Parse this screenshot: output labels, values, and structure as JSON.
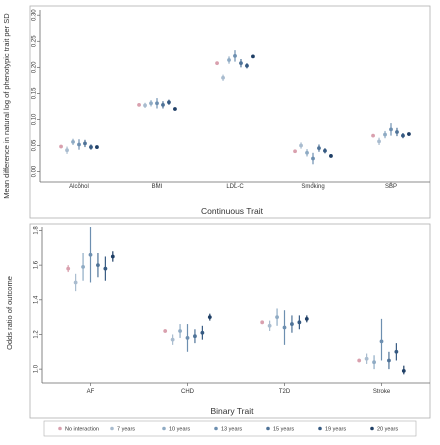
{
  "colors": {
    "series": [
      "#d9a0ae",
      "#a9bccf",
      "#8fabc4",
      "#6d8fb0",
      "#4f7398",
      "#365a82",
      "#1f3f66"
    ],
    "axis": "#666666",
    "frame": "#b0b0b0",
    "text": "#333333"
  },
  "legend": {
    "placement": "bottom",
    "items": [
      "No interaction",
      "7 years",
      "10 years",
      "13 years",
      "15 years",
      "19 years",
      "20 years"
    ]
  },
  "chart_data": [
    {
      "type": "scatter",
      "error_bars": true,
      "xlabel": "Continuous Trait",
      "ylabel": "Mean difference in natural log of phenotypic trait per SD",
      "categories": [
        "Alcohol",
        "BMI",
        "LDL-C",
        "Smoking",
        "SBP"
      ],
      "ylim": [
        -0.02,
        0.31
      ],
      "yticks": [
        0.0,
        0.05,
        0.1,
        0.15,
        0.2,
        0.25,
        0.3
      ],
      "ytick_labels": [
        "0.00",
        "0.05",
        "0.10",
        "0.15",
        "0.20",
        "0.25",
        "0.30"
      ],
      "grid": false,
      "series": [
        {
          "name": "No interaction",
          "values": [
            0.048,
            0.128,
            0.208,
            0.039,
            0.069
          ],
          "lower": [
            0.046,
            0.126,
            0.206,
            0.037,
            0.067
          ],
          "upper": [
            0.05,
            0.13,
            0.21,
            0.041,
            0.071
          ]
        },
        {
          "name": "7 years",
          "values": [
            0.041,
            0.127,
            0.18,
            0.05,
            0.058
          ],
          "lower": [
            0.034,
            0.122,
            0.174,
            0.044,
            0.051
          ],
          "upper": [
            0.048,
            0.132,
            0.186,
            0.056,
            0.065
          ]
        },
        {
          "name": "10 years",
          "values": [
            0.057,
            0.131,
            0.214,
            0.036,
            0.071
          ],
          "lower": [
            0.051,
            0.125,
            0.207,
            0.029,
            0.064
          ],
          "upper": [
            0.063,
            0.137,
            0.221,
            0.043,
            0.078
          ]
        },
        {
          "name": "13 years",
          "values": [
            0.052,
            0.131,
            0.222,
            0.025,
            0.081
          ],
          "lower": [
            0.042,
            0.121,
            0.211,
            0.014,
            0.069
          ],
          "upper": [
            0.062,
            0.141,
            0.233,
            0.036,
            0.093
          ]
        },
        {
          "name": "15 years",
          "values": [
            0.054,
            0.128,
            0.208,
            0.045,
            0.076
          ],
          "lower": [
            0.047,
            0.121,
            0.2,
            0.038,
            0.068
          ],
          "upper": [
            0.061,
            0.135,
            0.216,
            0.052,
            0.084
          ]
        },
        {
          "name": "19 years",
          "values": [
            0.047,
            0.133,
            0.203,
            0.04,
            0.069
          ],
          "lower": [
            0.042,
            0.128,
            0.198,
            0.035,
            0.064
          ],
          "upper": [
            0.052,
            0.138,
            0.208,
            0.045,
            0.074
          ]
        },
        {
          "name": "20 years",
          "values": [
            0.047,
            0.12,
            0.221,
            0.03,
            0.072
          ],
          "lower": [
            0.044,
            0.117,
            0.218,
            0.027,
            0.069
          ],
          "upper": [
            0.05,
            0.123,
            0.224,
            0.033,
            0.075
          ]
        }
      ]
    },
    {
      "type": "scatter",
      "error_bars": true,
      "xlabel": "Binary Trait",
      "ylabel": "Odds ratio of outcome",
      "categories": [
        "AF",
        "CHD",
        "T2D",
        "Stroke"
      ],
      "ylim": [
        0.92,
        1.82
      ],
      "yticks": [
        1.0,
        1.2,
        1.4,
        1.6,
        1.8
      ],
      "ytick_labels": [
        "1.0",
        "1.2",
        "1.4",
        "1.6",
        "1.8"
      ],
      "grid": false,
      "series": [
        {
          "name": "No interaction",
          "values": [
            1.58,
            1.22,
            1.27,
            1.05
          ],
          "lower": [
            1.56,
            1.21,
            1.26,
            1.04
          ],
          "upper": [
            1.6,
            1.23,
            1.28,
            1.06
          ]
        },
        {
          "name": "7 years",
          "values": [
            1.5,
            1.17,
            1.25,
            1.06
          ],
          "lower": [
            1.45,
            1.14,
            1.22,
            1.03
          ],
          "upper": [
            1.55,
            1.2,
            1.28,
            1.09
          ]
        },
        {
          "name": "10 years",
          "values": [
            1.59,
            1.22,
            1.3,
            1.04
          ],
          "lower": [
            1.51,
            1.18,
            1.25,
            1.0
          ],
          "upper": [
            1.67,
            1.26,
            1.35,
            1.08
          ]
        },
        {
          "name": "13 years",
          "values": [
            1.66,
            1.18,
            1.24,
            1.16
          ],
          "lower": [
            1.5,
            1.1,
            1.14,
            1.05
          ],
          "upper": [
            1.82,
            1.26,
            1.34,
            1.29
          ]
        },
        {
          "name": "15 years",
          "values": [
            1.6,
            1.19,
            1.26,
            1.05
          ],
          "lower": [
            1.53,
            1.15,
            1.21,
            1.0
          ],
          "upper": [
            1.67,
            1.23,
            1.31,
            1.1
          ]
        },
        {
          "name": "19 years",
          "values": [
            1.58,
            1.21,
            1.27,
            1.1
          ],
          "lower": [
            1.51,
            1.17,
            1.23,
            1.05
          ],
          "upper": [
            1.65,
            1.25,
            1.31,
            1.15
          ]
        },
        {
          "name": "20 years",
          "values": [
            1.65,
            1.3,
            1.29,
            0.99
          ],
          "lower": [
            1.62,
            1.28,
            1.27,
            0.97
          ],
          "upper": [
            1.68,
            1.32,
            1.31,
            1.02
          ]
        }
      ]
    }
  ]
}
